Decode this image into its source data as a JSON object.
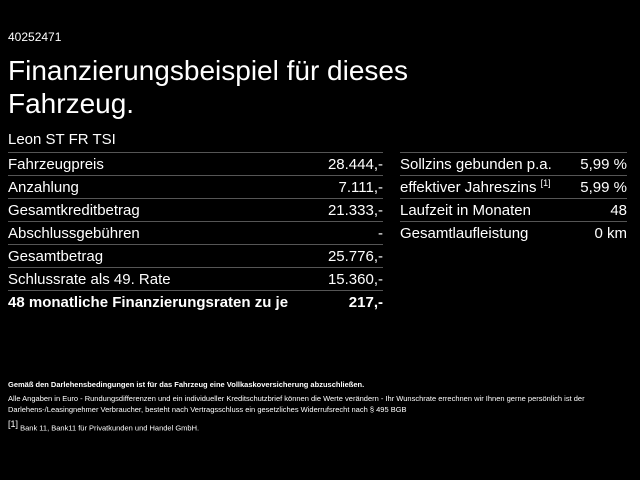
{
  "id": "40252471",
  "title": "Finanzierungsbeispiel für dieses Fahrzeug.",
  "model": "Leon ST FR TSI",
  "left_table": {
    "rows": [
      [
        "Fahrzeugpreis",
        "28.444,-"
      ],
      [
        "Anzahlung",
        "7.111,-"
      ],
      [
        "Gesamtkreditbetrag",
        "21.333,-"
      ],
      [
        "Abschlussgebühren",
        "-"
      ],
      [
        "Gesamtbetrag",
        "25.776,-"
      ],
      [
        "Schlussrate als 49. Rate",
        "15.360,-"
      ],
      [
        "48 monatliche Finanzierungsraten zu je",
        "217,-"
      ]
    ]
  },
  "right_table": {
    "rows": [
      [
        "Sollzins gebunden p.a.",
        "5,99 %"
      ],
      [
        "effektiver Jahreszins",
        "5,99 %"
      ],
      [
        "Laufzeit in Monaten",
        "48"
      ],
      [
        "Gesamtlaufleistung",
        "0 km"
      ]
    ],
    "footnote_ref": "[1]"
  },
  "insurance_note": "Gemäß den Darlehensbedingungen ist für das Fahrzeug eine Vollkaskoversicherung abzuschließen.",
  "disclaimer": "Alle Angaben in Euro - Rundungsdifferenzen und ein individueller Kreditschutzbrief können die Werte verändern - Ihr Wunschrate errechnen wir Ihnen gerne persönlich ist der Darlehens-/Leasingnehmer Verbraucher, besteht nach Vertragsschluss ein gesetzliches Widerrufsrecht nach § 495 BGB",
  "footnote": {
    "ref": "[1]",
    "text": "Bank 11, Bank11 für Privatkunden und Handel GmbH."
  }
}
